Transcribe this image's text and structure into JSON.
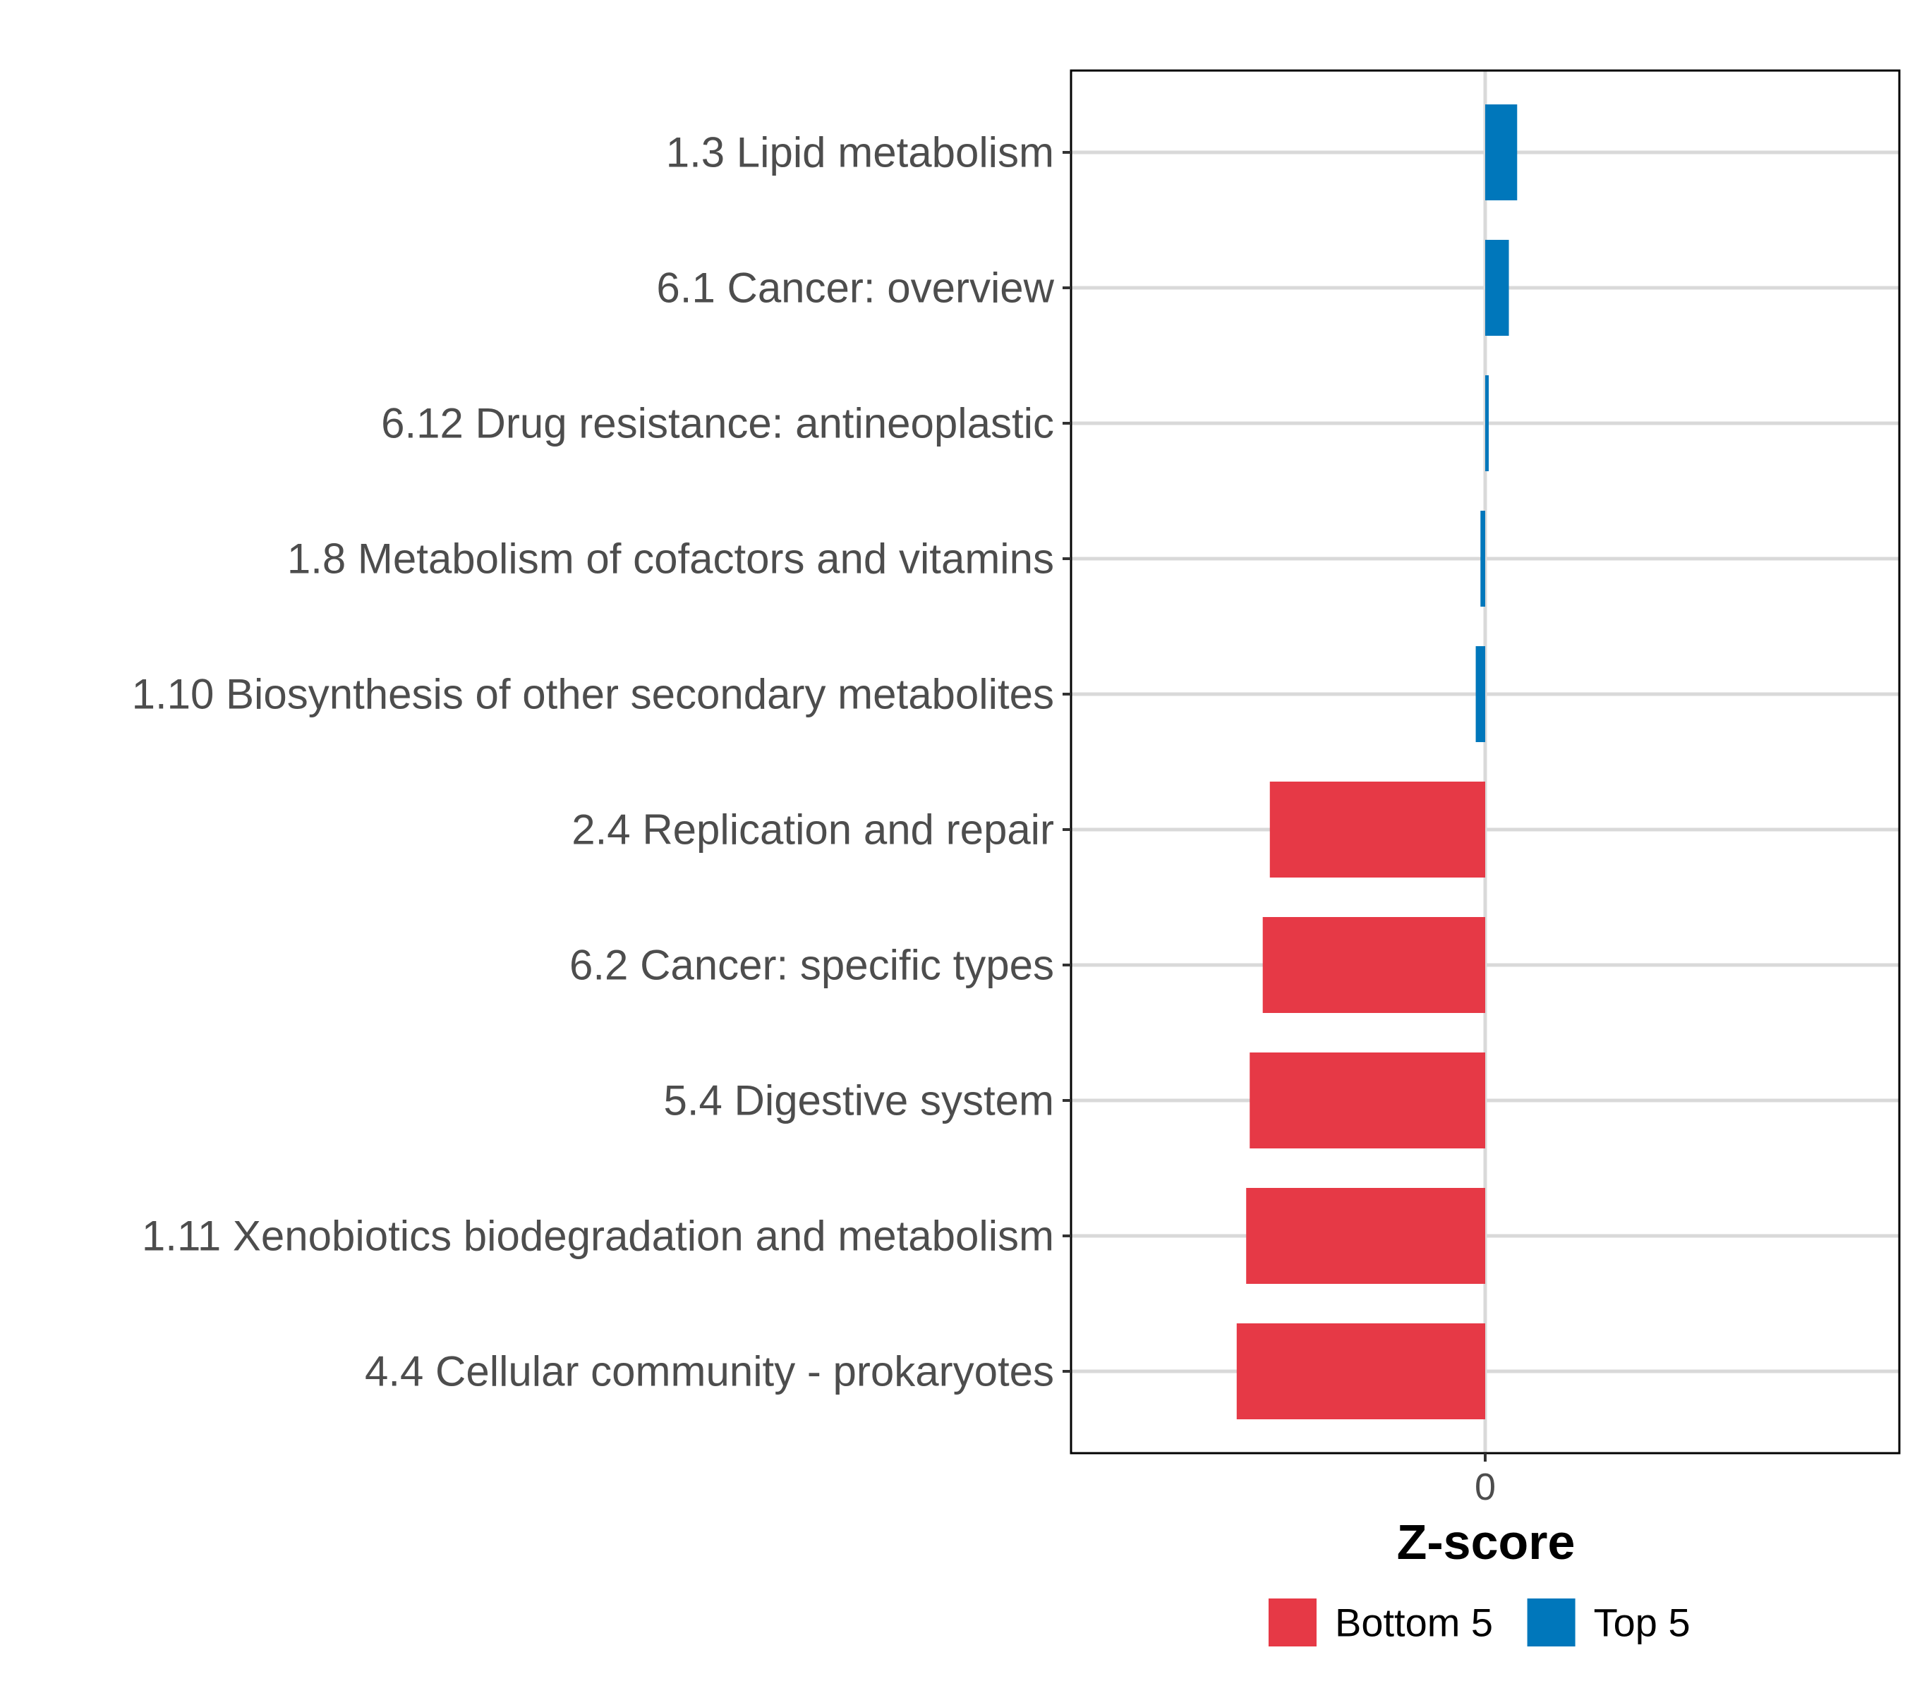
{
  "chart_data": {
    "type": "bar",
    "orientation": "horizontal",
    "title": "",
    "xlabel": "Z-score",
    "ylabel": "",
    "xlim": [
      -3.5,
      3.5
    ],
    "xticks": [
      0
    ],
    "xtick_labels": [
      "0"
    ],
    "grid": true,
    "categories": [
      "1.3 Lipid metabolism",
      "6.1 Cancer: overview",
      "6.12 Drug resistance: antineoplastic",
      "1.8 Metabolism of cofactors and vitamins",
      "1.10 Biosynthesis of other secondary metabolites",
      "2.4 Replication and repair",
      "6.2 Cancer: specific types",
      "5.4 Digestive system",
      "1.11 Xenobiotics biodegradation and metabolism",
      "4.4 Cellular community - prokaryotes"
    ],
    "values": [
      0.27,
      0.2,
      0.03,
      -0.04,
      -0.08,
      -1.82,
      -1.88,
      -1.99,
      -2.02,
      -2.1
    ],
    "groups": [
      "Top 5",
      "Top 5",
      "Top 5",
      "Top 5",
      "Top 5",
      "Bottom 5",
      "Bottom 5",
      "Bottom 5",
      "Bottom 5",
      "Bottom 5"
    ],
    "legend": {
      "position": "bottom",
      "entries": [
        {
          "label": "Bottom 5",
          "color": "#E63946"
        },
        {
          "label": "Top 5",
          "color": "#0077BB"
        }
      ]
    }
  }
}
